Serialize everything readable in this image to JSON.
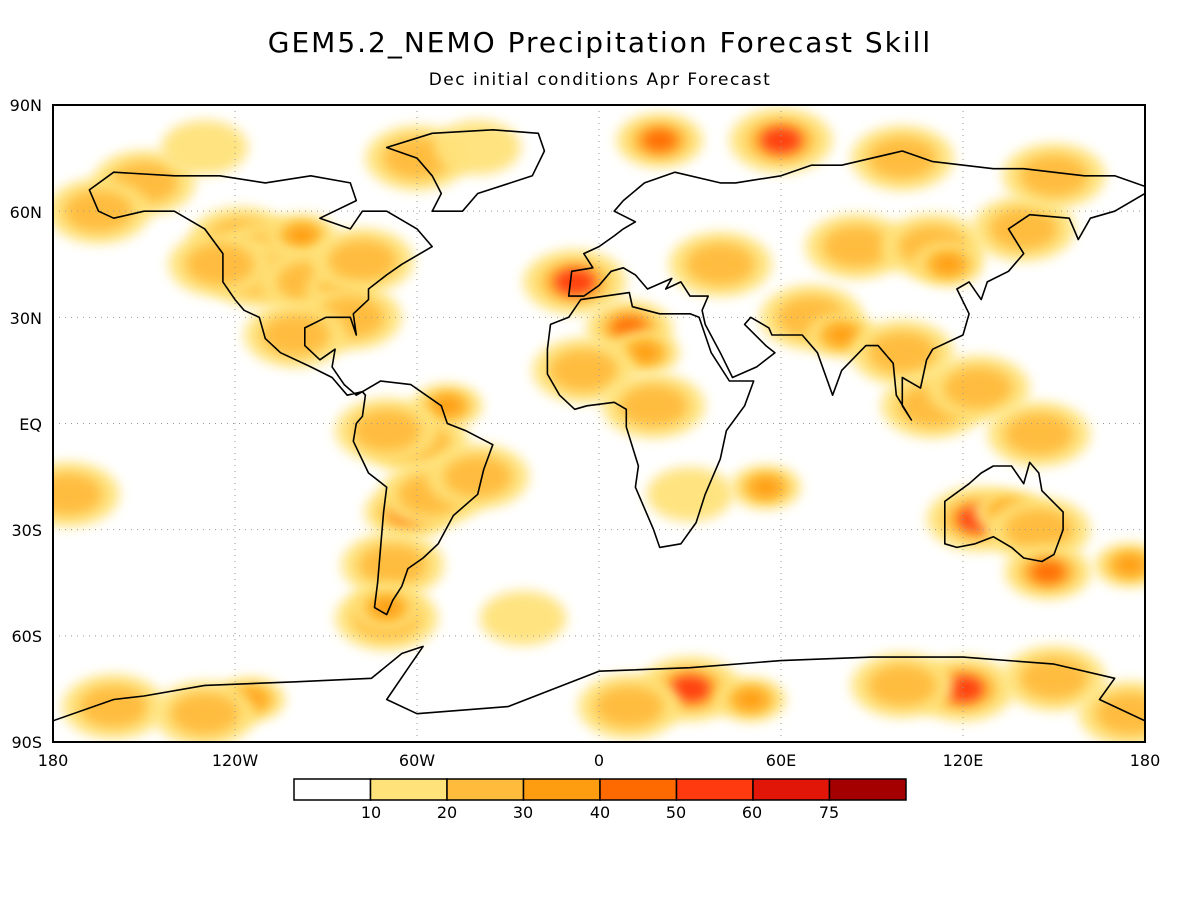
{
  "title": "GEM5.2_NEMO Precipitation Forecast Skill",
  "subtitle": "Dec initial conditions  Apr Forecast",
  "map": {
    "lon_range": [
      -180,
      180
    ],
    "lat_range": [
      -90,
      90
    ],
    "grid": "on",
    "lat_ticks": [
      {
        "value": 90,
        "label": "90N"
      },
      {
        "value": 60,
        "label": "60N"
      },
      {
        "value": 30,
        "label": "30N"
      },
      {
        "value": 0,
        "label": "EQ"
      },
      {
        "value": -30,
        "label": "30S"
      },
      {
        "value": -60,
        "label": "60S"
      },
      {
        "value": -90,
        "label": "90S"
      }
    ],
    "lon_ticks": [
      {
        "value": -180,
        "label": "180"
      },
      {
        "value": -120,
        "label": "120W"
      },
      {
        "value": -60,
        "label": "60W"
      },
      {
        "value": 0,
        "label": "0"
      },
      {
        "value": 60,
        "label": "60E"
      },
      {
        "value": 120,
        "label": "120E"
      },
      {
        "value": 180,
        "label": "180"
      }
    ]
  },
  "legend": {
    "colors": [
      "#ffffff",
      "#ffe27a",
      "#ffbb3c",
      "#ff9d10",
      "#ff6a00",
      "#ff3a0f",
      "#e11508",
      "#a50000"
    ],
    "labels": [
      "10",
      "20",
      "30",
      "40",
      "50",
      "60",
      "75"
    ]
  },
  "skill_regions": [
    {
      "lon": -118,
      "lat": 52,
      "level": 2
    },
    {
      "lon": -108,
      "lat": 48,
      "level": 2
    },
    {
      "lon": -98,
      "lat": 53,
      "level": 3
    },
    {
      "lon": -112,
      "lat": 42,
      "level": 2
    },
    {
      "lon": -95,
      "lat": 40,
      "level": 2
    },
    {
      "lon": -85,
      "lat": 38,
      "level": 3
    },
    {
      "lon": -78,
      "lat": 46,
      "level": 2
    },
    {
      "lon": -125,
      "lat": 45,
      "level": 2
    },
    {
      "lon": -150,
      "lat": 68,
      "level": 2
    },
    {
      "lon": -165,
      "lat": 60,
      "level": 2
    },
    {
      "lon": -82,
      "lat": 30,
      "level": 2
    },
    {
      "lon": -100,
      "lat": 25,
      "level": 2
    },
    {
      "lon": -60,
      "lat": 75,
      "level": 2
    },
    {
      "lon": -40,
      "lat": 78,
      "level": 1
    },
    {
      "lon": -130,
      "lat": 78,
      "level": 1
    },
    {
      "lon": -60,
      "lat": -5,
      "level": 2
    },
    {
      "lon": -50,
      "lat": 5,
      "level": 3
    },
    {
      "lon": -70,
      "lat": -2,
      "level": 2
    },
    {
      "lon": -63,
      "lat": -25,
      "level": 4
    },
    {
      "lon": -55,
      "lat": -20,
      "level": 2
    },
    {
      "lon": -68,
      "lat": -40,
      "level": 2
    },
    {
      "lon": -70,
      "lat": -55,
      "level": 2
    },
    {
      "lon": -40,
      "lat": -15,
      "level": 2
    },
    {
      "lon": -8,
      "lat": 40,
      "level": 5
    },
    {
      "lon": 10,
      "lat": 27,
      "level": 4
    },
    {
      "lon": 15,
      "lat": 20,
      "level": 3
    },
    {
      "lon": -5,
      "lat": 15,
      "level": 2
    },
    {
      "lon": 18,
      "lat": 5,
      "level": 2
    },
    {
      "lon": 30,
      "lat": -20,
      "level": 1
    },
    {
      "lon": 55,
      "lat": -18,
      "level": 3
    },
    {
      "lon": 40,
      "lat": 45,
      "level": 2
    },
    {
      "lon": 70,
      "lat": 30,
      "level": 2
    },
    {
      "lon": 80,
      "lat": 25,
      "level": 3
    },
    {
      "lon": 85,
      "lat": 50,
      "level": 2
    },
    {
      "lon": 110,
      "lat": 50,
      "level": 2
    },
    {
      "lon": 140,
      "lat": 55,
      "level": 2
    },
    {
      "lon": 115,
      "lat": 45,
      "level": 3
    },
    {
      "lon": 100,
      "lat": 20,
      "level": 2
    },
    {
      "lon": 110,
      "lat": 5,
      "level": 2
    },
    {
      "lon": 125,
      "lat": 10,
      "level": 2
    },
    {
      "lon": 145,
      "lat": -3,
      "level": 2
    },
    {
      "lon": 20,
      "lat": 80,
      "level": 4
    },
    {
      "lon": 60,
      "lat": 80,
      "level": 5
    },
    {
      "lon": 100,
      "lat": 75,
      "level": 2
    },
    {
      "lon": 150,
      "lat": 70,
      "level": 2
    },
    {
      "lon": 125,
      "lat": -27,
      "level": 5
    },
    {
      "lon": 135,
      "lat": -25,
      "level": 3
    },
    {
      "lon": 145,
      "lat": -30,
      "level": 2
    },
    {
      "lon": 148,
      "lat": -42,
      "level": 4
    },
    {
      "lon": 175,
      "lat": -40,
      "level": 3
    },
    {
      "lon": -175,
      "lat": -20,
      "level": 2
    },
    {
      "lon": -115,
      "lat": -78,
      "level": 3
    },
    {
      "lon": -160,
      "lat": -80,
      "level": 2
    },
    {
      "lon": -130,
      "lat": -82,
      "level": 2
    },
    {
      "lon": 30,
      "lat": -75,
      "level": 5
    },
    {
      "lon": 10,
      "lat": -80,
      "level": 2
    },
    {
      "lon": 50,
      "lat": -78,
      "level": 3
    },
    {
      "lon": 120,
      "lat": -75,
      "level": 5
    },
    {
      "lon": 100,
      "lat": -74,
      "level": 2
    },
    {
      "lon": 150,
      "lat": -72,
      "level": 2
    },
    {
      "lon": 175,
      "lat": -82,
      "level": 2
    },
    {
      "lon": -70,
      "lat": -52,
      "level": 3
    },
    {
      "lon": -25,
      "lat": -55,
      "level": 1
    }
  ],
  "land_outlines": [
    {
      "name": "north-america",
      "points": [
        [
          -168,
          66
        ],
        [
          -160,
          71
        ],
        [
          -140,
          70
        ],
        [
          -125,
          70
        ],
        [
          -110,
          68
        ],
        [
          -95,
          70
        ],
        [
          -82,
          68
        ],
        [
          -80,
          63
        ],
        [
          -92,
          58
        ],
        [
          -82,
          55
        ],
        [
          -78,
          60
        ],
        [
          -70,
          60
        ],
        [
          -60,
          55
        ],
        [
          -55,
          50
        ],
        [
          -65,
          45
        ],
        [
          -70,
          42
        ],
        [
          -76,
          38
        ],
        [
          -76,
          35
        ],
        [
          -81,
          31
        ],
        [
          -80,
          25
        ],
        [
          -82,
          30
        ],
        [
          -90,
          30
        ],
        [
          -97,
          27
        ],
        [
          -97,
          22
        ],
        [
          -92,
          18
        ],
        [
          -87,
          21
        ],
        [
          -88,
          16
        ],
        [
          -84,
          11
        ],
        [
          -80,
          8
        ],
        [
          -78,
          9
        ],
        [
          -83,
          8
        ],
        [
          -88,
          13
        ],
        [
          -95,
          16
        ],
        [
          -105,
          20
        ],
        [
          -110,
          24
        ],
        [
          -112,
          30
        ],
        [
          -117,
          32
        ],
        [
          -120,
          35
        ],
        [
          -124,
          40
        ],
        [
          -124,
          48
        ],
        [
          -130,
          55
        ],
        [
          -140,
          60
        ],
        [
          -150,
          60
        ],
        [
          -160,
          58
        ],
        [
          -165,
          60
        ],
        [
          -168,
          66
        ]
      ]
    },
    {
      "name": "greenland",
      "points": [
        [
          -55,
          60
        ],
        [
          -45,
          60
        ],
        [
          -40,
          65
        ],
        [
          -22,
          70
        ],
        [
          -18,
          77
        ],
        [
          -20,
          82
        ],
        [
          -35,
          83
        ],
        [
          -55,
          82
        ],
        [
          -70,
          78
        ],
        [
          -60,
          75
        ],
        [
          -55,
          70
        ],
        [
          -52,
          65
        ],
        [
          -55,
          60
        ]
      ]
    },
    {
      "name": "south-america",
      "points": [
        [
          -78,
          9
        ],
        [
          -72,
          12
        ],
        [
          -62,
          11
        ],
        [
          -52,
          5
        ],
        [
          -50,
          0
        ],
        [
          -44,
          -2
        ],
        [
          -35,
          -6
        ],
        [
          -38,
          -13
        ],
        [
          -40,
          -20
        ],
        [
          -48,
          -26
        ],
        [
          -53,
          -34
        ],
        [
          -58,
          -38
        ],
        [
          -63,
          -41
        ],
        [
          -65,
          -46
        ],
        [
          -68,
          -50
        ],
        [
          -70,
          -54
        ],
        [
          -74,
          -52
        ],
        [
          -73,
          -45
        ],
        [
          -72,
          -35
        ],
        [
          -71,
          -25
        ],
        [
          -70,
          -18
        ],
        [
          -76,
          -14
        ],
        [
          -81,
          -5
        ],
        [
          -80,
          0
        ],
        [
          -78,
          2
        ],
        [
          -77,
          8
        ],
        [
          -78,
          9
        ]
      ]
    },
    {
      "name": "europe-asia",
      "points": [
        [
          -10,
          36
        ],
        [
          -9,
          43
        ],
        [
          -2,
          44
        ],
        [
          -5,
          48
        ],
        [
          0,
          50
        ],
        [
          5,
          53
        ],
        [
          8,
          55
        ],
        [
          12,
          57
        ],
        [
          5,
          60
        ],
        [
          8,
          63
        ],
        [
          15,
          68
        ],
        [
          25,
          71
        ],
        [
          40,
          68
        ],
        [
          45,
          68
        ],
        [
          60,
          70
        ],
        [
          70,
          73
        ],
        [
          80,
          73
        ],
        [
          100,
          77
        ],
        [
          110,
          74
        ],
        [
          130,
          72
        ],
        [
          140,
          72
        ],
        [
          160,
          70
        ],
        [
          170,
          70
        ],
        [
          180,
          67
        ],
        [
          180,
          65
        ],
        [
          170,
          60
        ],
        [
          162,
          58
        ],
        [
          158,
          52
        ],
        [
          155,
          58
        ],
        [
          142,
          59
        ],
        [
          135,
          55
        ],
        [
          140,
          48
        ],
        [
          135,
          43
        ],
        [
          128,
          40
        ],
        [
          126,
          35
        ],
        [
          122,
          40
        ],
        [
          118,
          38
        ],
        [
          122,
          31
        ],
        [
          120,
          25
        ],
        [
          110,
          21
        ],
        [
          108,
          18
        ],
        [
          106,
          10
        ],
        [
          100,
          13
        ],
        [
          100,
          5
        ],
        [
          103,
          1
        ],
        [
          98,
          8
        ],
        [
          97,
          17
        ],
        [
          92,
          22
        ],
        [
          88,
          22
        ],
        [
          80,
          15
        ],
        [
          77,
          8
        ],
        [
          72,
          20
        ],
        [
          67,
          25
        ],
        [
          57,
          25
        ],
        [
          56,
          27
        ],
        [
          50,
          30
        ],
        [
          48,
          28
        ],
        [
          55,
          22
        ],
        [
          58,
          20
        ],
        [
          52,
          16
        ],
        [
          44,
          13
        ],
        [
          40,
          20
        ],
        [
          35,
          28
        ],
        [
          34,
          32
        ],
        [
          36,
          36
        ],
        [
          30,
          36
        ],
        [
          27,
          40
        ],
        [
          22,
          38
        ],
        [
          24,
          41
        ],
        [
          16,
          38
        ],
        [
          12,
          42
        ],
        [
          8,
          44
        ],
        [
          4,
          43
        ],
        [
          0,
          39
        ],
        [
          -5,
          36
        ],
        [
          -10,
          36
        ]
      ]
    },
    {
      "name": "africa",
      "points": [
        [
          -17,
          21
        ],
        [
          -16,
          28
        ],
        [
          -10,
          30
        ],
        [
          -6,
          35
        ],
        [
          10,
          37
        ],
        [
          11,
          33
        ],
        [
          20,
          31
        ],
        [
          30,
          31
        ],
        [
          33,
          30
        ],
        [
          37,
          20
        ],
        [
          43,
          12
        ],
        [
          51,
          12
        ],
        [
          48,
          5
        ],
        [
          42,
          -2
        ],
        [
          40,
          -10
        ],
        [
          35,
          -20
        ],
        [
          32,
          -28
        ],
        [
          27,
          -34
        ],
        [
          20,
          -35
        ],
        [
          18,
          -30
        ],
        [
          12,
          -18
        ],
        [
          13,
          -12
        ],
        [
          9,
          -1
        ],
        [
          9,
          4
        ],
        [
          5,
          6
        ],
        [
          -4,
          5
        ],
        [
          -8,
          4
        ],
        [
          -13,
          8
        ],
        [
          -17,
          14
        ],
        [
          -17,
          21
        ]
      ]
    },
    {
      "name": "australia",
      "points": [
        [
          114,
          -22
        ],
        [
          114,
          -34
        ],
        [
          118,
          -35
        ],
        [
          124,
          -34
        ],
        [
          130,
          -32
        ],
        [
          136,
          -35
        ],
        [
          140,
          -38
        ],
        [
          146,
          -39
        ],
        [
          150,
          -37
        ],
        [
          153,
          -30
        ],
        [
          153,
          -25
        ],
        [
          146,
          -19
        ],
        [
          145,
          -14
        ],
        [
          142,
          -11
        ],
        [
          140,
          -17
        ],
        [
          136,
          -12
        ],
        [
          130,
          -12
        ],
        [
          126,
          -14
        ],
        [
          122,
          -17
        ],
        [
          114,
          -22
        ]
      ]
    },
    {
      "name": "antarctica",
      "points": [
        [
          -180,
          -84
        ],
        [
          -160,
          -78
        ],
        [
          -150,
          -77
        ],
        [
          -130,
          -74
        ],
        [
          -100,
          -73
        ],
        [
          -75,
          -72
        ],
        [
          -65,
          -65
        ],
        [
          -58,
          -63
        ],
        [
          -62,
          -68
        ],
        [
          -70,
          -78
        ],
        [
          -60,
          -82
        ],
        [
          -30,
          -80
        ],
        [
          0,
          -70
        ],
        [
          30,
          -69
        ],
        [
          60,
          -67
        ],
        [
          90,
          -66
        ],
        [
          120,
          -66
        ],
        [
          150,
          -68
        ],
        [
          170,
          -72
        ],
        [
          165,
          -78
        ],
        [
          180,
          -84
        ]
      ]
    }
  ]
}
